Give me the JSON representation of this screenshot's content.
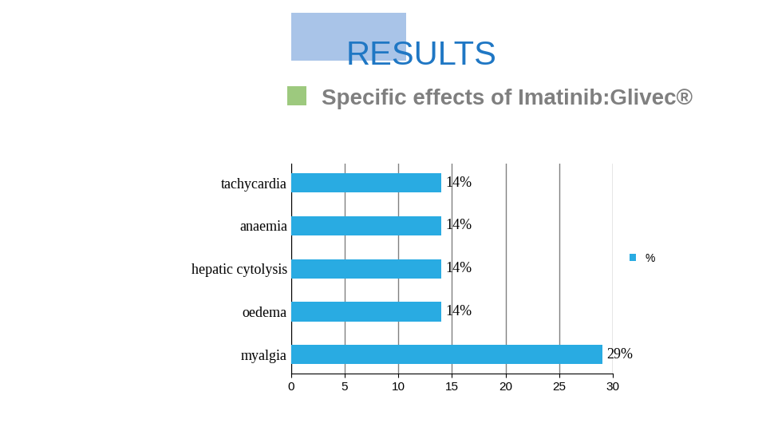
{
  "chart_data": {
    "type": "bar",
    "orientation": "horizontal",
    "title": "RESULTS",
    "subtitle": "Specific effects of Imatinib:Glivec®",
    "categories": [
      "tachycardia",
      "anaemia",
      "hepatic cytolysis",
      "oedema",
      "myalgia"
    ],
    "series": [
      {
        "name": "%",
        "color": "#29abe2",
        "values": [
          14,
          14,
          14,
          14,
          29
        ],
        "value_labels": [
          "14%",
          "14%",
          "14%",
          "14%",
          "29%"
        ]
      }
    ],
    "xlim": [
      0,
      30
    ],
    "xticks": [
      0,
      5,
      10,
      15,
      20,
      25,
      30
    ],
    "grid": true,
    "legend": "right",
    "data_labels": true
  }
}
